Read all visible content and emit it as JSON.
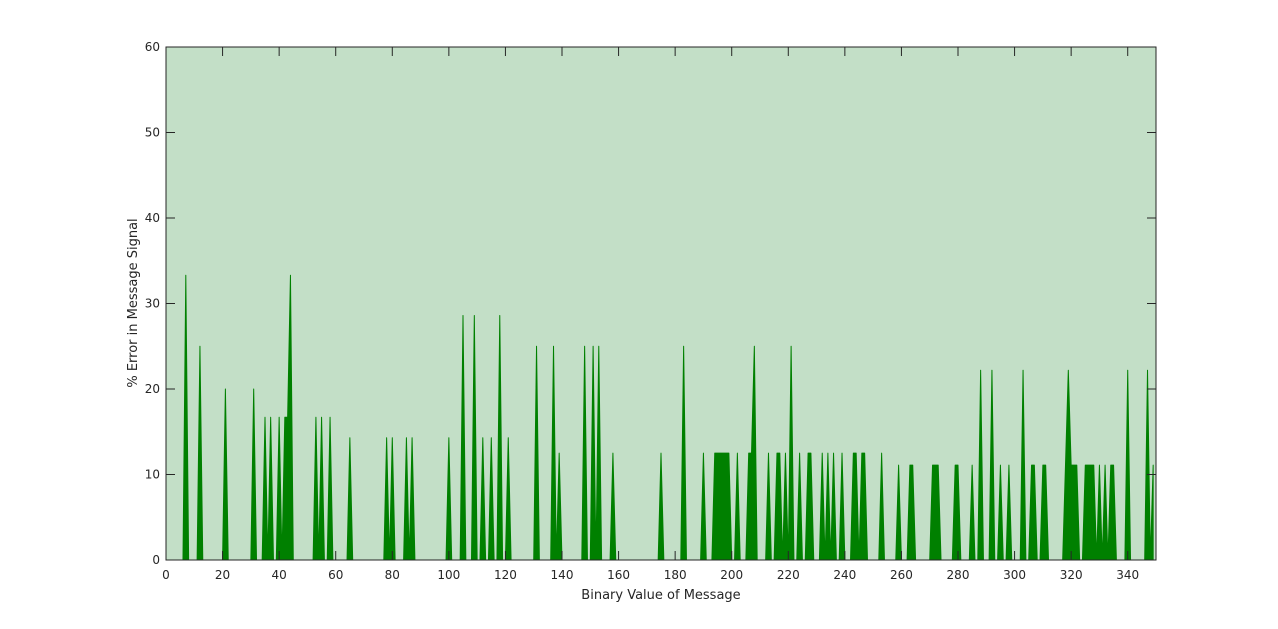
{
  "chart_data": {
    "type": "area",
    "x_label": "Binary Value of Message",
    "y_label": "% Error in Message Signal",
    "color": "#008000",
    "plot_background": "#c3dfc7",
    "xlim": [
      0,
      350
    ],
    "xticks": [
      0,
      20,
      40,
      60,
      80,
      100,
      120,
      140,
      160,
      180,
      200,
      220,
      240,
      260,
      280,
      300,
      320,
      340
    ],
    "ylim": [
      0,
      60
    ],
    "yticks": [
      0,
      10,
      20,
      30,
      40,
      50,
      60
    ],
    "x": [
      0,
      1,
      2,
      3,
      4,
      5,
      6,
      7,
      8,
      9,
      10,
      11,
      12,
      13,
      14,
      15,
      16,
      17,
      18,
      19,
      20,
      21,
      22,
      23,
      24,
      25,
      26,
      27,
      28,
      29,
      30,
      31,
      32,
      33,
      34,
      35,
      36,
      37,
      38,
      39,
      40,
      41,
      42,
      43,
      44,
      45,
      46,
      47,
      48,
      49,
      50,
      51,
      52,
      53,
      54,
      55,
      56,
      57,
      58,
      59,
      60,
      61,
      62,
      63,
      64,
      65,
      66,
      67,
      68,
      69,
      70,
      71,
      72,
      73,
      74,
      75,
      76,
      77,
      78,
      79,
      80,
      81,
      82,
      83,
      84,
      85,
      86,
      87,
      88,
      89,
      90,
      91,
      92,
      93,
      94,
      95,
      96,
      97,
      98,
      99,
      100,
      101,
      102,
      103,
      104,
      105,
      106,
      107,
      108,
      109,
      110,
      111,
      112,
      113,
      114,
      115,
      116,
      117,
      118,
      119,
      120,
      121,
      122,
      123,
      124,
      125,
      126,
      127,
      128,
      129,
      130,
      131,
      132,
      133,
      134,
      135,
      136,
      137,
      138,
      139,
      140,
      141,
      142,
      143,
      144,
      145,
      146,
      147,
      148,
      149,
      150,
      151,
      152,
      153,
      154,
      155,
      156,
      157,
      158,
      159,
      160,
      161,
      162,
      163,
      164,
      165,
      166,
      167,
      168,
      169,
      170,
      171,
      172,
      173,
      174,
      175,
      176,
      177,
      178,
      179,
      180,
      181,
      182,
      183,
      184,
      185,
      186,
      187,
      188,
      189,
      190,
      191,
      192,
      193,
      194,
      195,
      196,
      197,
      198,
      199,
      200,
      201,
      202,
      203,
      204,
      205,
      206,
      207,
      208,
      209,
      210,
      211,
      212,
      213,
      214,
      215,
      216,
      217,
      218,
      219,
      220,
      221,
      222,
      223,
      224,
      225,
      226,
      227,
      228,
      229,
      230,
      231,
      232,
      233,
      234,
      235,
      236,
      237,
      238,
      239,
      240,
      241,
      242,
      243,
      244,
      245,
      246,
      247,
      248,
      249,
      250,
      251,
      252,
      253,
      254,
      255,
      256,
      257,
      258,
      259,
      260,
      261,
      262,
      263,
      264,
      265,
      266,
      267,
      268,
      269,
      270,
      271,
      272,
      273,
      274,
      275,
      276,
      277,
      278,
      279,
      280,
      281,
      282,
      283,
      284,
      285,
      286,
      287,
      288,
      289,
      290,
      291,
      292,
      293,
      294,
      295,
      296,
      297,
      298,
      299,
      300,
      301,
      302,
      303,
      304,
      305,
      306,
      307,
      308,
      309,
      310,
      311,
      312,
      313,
      314,
      315,
      316,
      317,
      318,
      319,
      320,
      321,
      322,
      323,
      324,
      325,
      326,
      327,
      328,
      329,
      330,
      331,
      332,
      333,
      334,
      335,
      336,
      337,
      338,
      339,
      340,
      341,
      342,
      343,
      344,
      345,
      346,
      347,
      348,
      349
    ],
    "values": [
      0,
      0,
      0,
      0,
      0,
      0,
      0,
      33.3,
      0,
      0,
      0,
      0,
      25,
      0,
      0,
      0,
      0,
      0,
      0,
      0,
      0,
      20,
      0,
      0,
      0,
      0,
      0,
      0,
      0,
      0,
      0,
      20,
      0,
      0,
      0,
      16.7,
      0,
      16.7,
      0,
      0,
      16.7,
      0,
      16.7,
      16.7,
      33.3,
      0,
      0,
      0,
      0,
      0,
      0,
      0,
      0,
      16.7,
      0,
      16.7,
      0,
      0,
      16.7,
      0,
      0,
      0,
      0,
      0,
      0,
      14.3,
      0,
      0,
      0,
      0,
      0,
      0,
      0,
      0,
      0,
      0,
      0,
      0,
      14.3,
      0,
      14.3,
      0,
      0,
      0,
      0,
      14.3,
      0,
      14.3,
      0,
      0,
      0,
      0,
      0,
      0,
      0,
      0,
      0,
      0,
      0,
      0,
      14.3,
      0,
      0,
      0,
      0,
      28.6,
      0,
      0,
      0,
      28.6,
      0,
      0,
      14.3,
      0,
      0,
      14.3,
      0,
      0,
      28.6,
      0,
      0,
      14.3,
      0,
      0,
      0,
      0,
      0,
      0,
      0,
      0,
      0,
      25,
      0,
      0,
      0,
      0,
      0,
      25,
      0,
      12.5,
      0,
      0,
      0,
      0,
      0,
      0,
      0,
      0,
      25,
      0,
      0,
      25,
      0,
      25,
      0,
      0,
      0,
      0,
      12.5,
      0,
      0,
      0,
      0,
      0,
      0,
      0,
      0,
      0,
      0,
      0,
      0,
      0,
      0,
      0,
      0,
      12.5,
      0,
      0,
      0,
      0,
      0,
      0,
      0,
      25,
      0,
      0,
      0,
      0,
      0,
      0,
      12.5,
      0,
      0,
      0,
      12.5,
      12.5,
      12.5,
      12.5,
      12.5,
      12.5,
      0,
      0,
      12.5,
      0,
      0,
      0,
      12.5,
      12.5,
      25,
      0,
      0,
      0,
      0,
      12.5,
      0,
      0,
      12.5,
      12.5,
      0,
      12.5,
      0,
      25,
      0,
      0,
      12.5,
      0,
      0,
      12.5,
      12.5,
      0,
      0,
      0,
      12.5,
      0,
      12.5,
      0,
      12.5,
      0,
      0,
      12.5,
      0,
      0,
      0,
      12.5,
      12.5,
      0,
      12.5,
      12.5,
      0,
      0,
      0,
      0,
      0,
      12.5,
      0,
      0,
      0,
      0,
      0,
      11.1,
      0,
      0,
      0,
      11.1,
      11.1,
      0,
      0,
      0,
      0,
      0,
      0,
      11.1,
      11.1,
      11.1,
      0,
      0,
      0,
      0,
      0,
      11.1,
      11.1,
      0,
      0,
      0,
      0,
      11.1,
      0,
      0,
      22.2,
      0,
      0,
      0,
      22.2,
      0,
      0,
      11.1,
      0,
      0,
      11.1,
      0,
      0,
      0,
      0,
      22.2,
      0,
      0,
      11.1,
      11.1,
      0,
      0,
      11.1,
      11.1,
      0,
      0,
      0,
      0,
      0,
      0,
      11.1,
      22.2,
      11.1,
      11.1,
      11.1,
      0,
      0,
      11.1,
      11.1,
      11.1,
      11.1,
      0,
      11.1,
      0,
      11.1,
      0,
      11.1,
      11.1,
      0,
      0,
      0,
      0,
      22.2,
      0,
      0,
      0,
      0,
      0,
      0,
      22.2,
      0,
      11.1
    ]
  }
}
